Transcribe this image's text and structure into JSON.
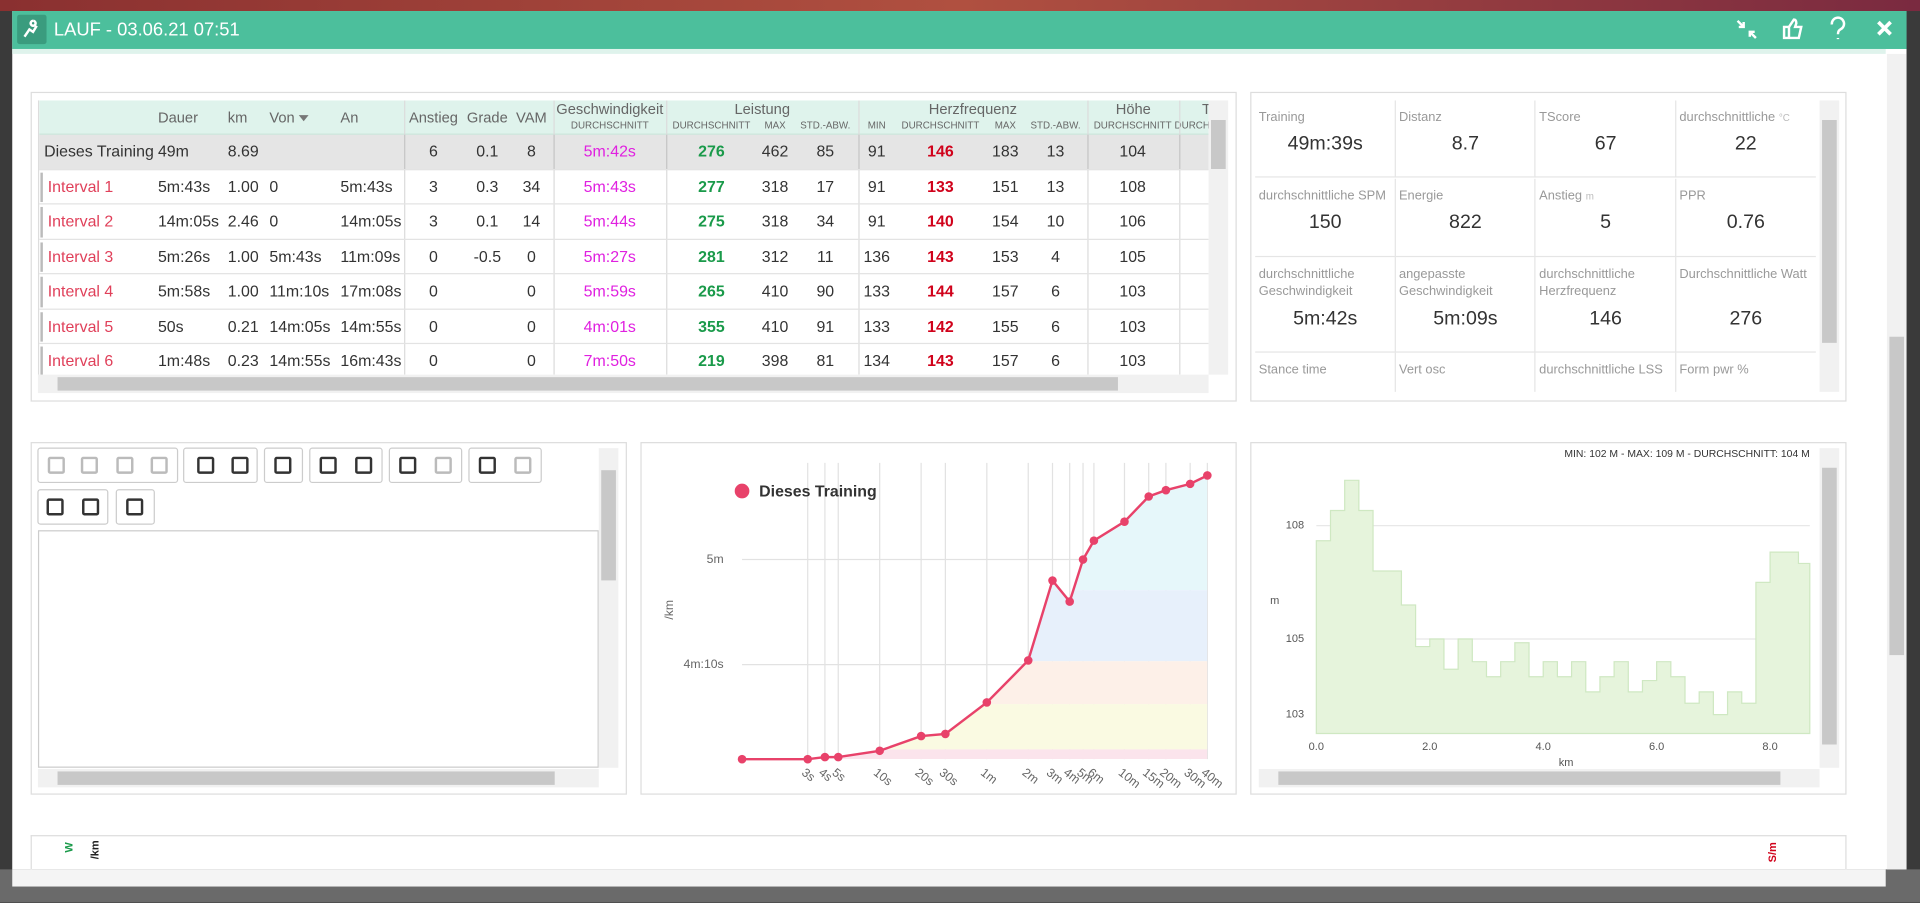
{
  "header": {
    "title": "LAUF - 03.06.21 07:51"
  },
  "table": {
    "columns": [
      "Dauer",
      "km",
      "Von",
      "An",
      "Anstieg",
      "Grade",
      "VAM"
    ],
    "groups": [
      {
        "label": "Geschwindigkeit",
        "sub": [
          "DURCHSCHNITT"
        ]
      },
      {
        "label": "Leistung",
        "sub": [
          "DURCHSCHNITT",
          "MAX",
          "STD.-ABW."
        ]
      },
      {
        "label": "Herzfrequenz",
        "sub": [
          "MIN",
          "DURCHSCHNITT",
          "MAX",
          "STD.-ABW."
        ]
      },
      {
        "label": "Höhe",
        "sub": [
          "DURCHSCHNITT"
        ]
      },
      {
        "label": "Temperatur",
        "sub": [
          "DURCHSCHNITT"
        ]
      }
    ],
    "rows": [
      [
        "Dieses Training",
        "49m",
        "8.69",
        null,
        null,
        "6",
        "0.1",
        "8",
        "5m:42s",
        "276",
        "462",
        "85",
        "91",
        "146",
        "183",
        "13",
        "104"
      ],
      [
        "Interval 1",
        "5m:43s",
        "1.00",
        "0",
        "5m:43s",
        "3",
        "0.3",
        "34",
        "5m:43s",
        "277",
        "318",
        "17",
        "91",
        "133",
        "151",
        "13",
        "108"
      ],
      [
        "Interval 2",
        "14m:05s",
        "2.46",
        "0",
        "14m:05s",
        "3",
        "0.1",
        "14",
        "5m:44s",
        "275",
        "318",
        "34",
        "91",
        "140",
        "154",
        "10",
        "106"
      ],
      [
        "Interval 3",
        "5m:26s",
        "1.00",
        "5m:43s",
        "11m:09s",
        "0",
        "-0.5",
        "0",
        "5m:27s",
        "281",
        "312",
        "11",
        "136",
        "143",
        "153",
        "4",
        "105"
      ],
      [
        "Interval 4",
        "5m:58s",
        "1.00",
        "11m:10s",
        "17m:08s",
        "0",
        null,
        "0",
        "5m:59s",
        "265",
        "410",
        "90",
        "133",
        "144",
        "157",
        "6",
        "103"
      ],
      [
        "Interval 5",
        "50s",
        "0.21",
        "14m:05s",
        "14m:55s",
        "0",
        null,
        "0",
        "4m:01s",
        "355",
        "410",
        "91",
        "133",
        "142",
        "155",
        "6",
        "103"
      ],
      [
        "Interval 6",
        "1m:48s",
        "0.23",
        "14m:55s",
        "16m:43s",
        "0",
        null,
        "0",
        "7m:50s",
        "219",
        "398",
        "81",
        "134",
        "143",
        "157",
        "6",
        "103"
      ]
    ]
  },
  "stats": [
    {
      "label": "Training",
      "value": "49m:39s"
    },
    {
      "label": "Distanz",
      "value": "8.7"
    },
    {
      "label": "TScore",
      "value": "67"
    },
    {
      "label": "durchschnittliche",
      "unit": "°C",
      "value": "22"
    },
    {
      "label": "durchschnittliche SPM",
      "value": "150"
    },
    {
      "label": "Energie",
      "value": "822"
    },
    {
      "label": "Anstieg",
      "unit": "m",
      "value": "5"
    },
    {
      "label": "PPR",
      "value": "0.76"
    },
    {
      "label": "durchschnittliche Geschwindigkeit",
      "value": "5m:42s"
    },
    {
      "label": "angepasste Geschwindigkeit",
      "value": "5m:09s"
    },
    {
      "label": "durchschnittliche Herzfrequenz",
      "value": "146"
    },
    {
      "label": "Durchschnittliche Watt",
      "value": "276"
    },
    {
      "label": "Stance time"
    },
    {
      "label": "Vert osc"
    },
    {
      "label": "durchschnittliche LSS"
    },
    {
      "label": "Form pwr %"
    }
  ],
  "chart_data": [
    {
      "type": "line",
      "y_label": "/km",
      "log_x": true,
      "grid": true,
      "x": [
        1,
        3,
        4,
        5,
        10,
        20,
        30,
        60,
        120,
        180,
        240,
        300,
        360,
        600,
        900,
        1200,
        1800,
        2400
      ],
      "series": [
        {
          "name": "Dieses Training",
          "color": "#e8426a",
          "values": [
            205,
            205,
            206,
            206,
            209,
            216,
            217,
            232,
            252,
            290,
            280,
            300,
            309,
            318,
            330,
            333,
            336,
            340
          ]
        }
      ],
      "xlim": [
        1,
        2400
      ],
      "xticks": [
        {
          "value": 3,
          "label": "3s"
        },
        {
          "value": 4,
          "label": "4s"
        },
        {
          "value": 5,
          "label": "5s"
        },
        {
          "value": 10,
          "label": "10s"
        },
        {
          "value": 20,
          "label": "20s"
        },
        {
          "value": 30,
          "label": "30s"
        },
        {
          "value": 60,
          "label": "1m"
        },
        {
          "value": 120,
          "label": "2m"
        },
        {
          "value": 180,
          "label": "3m"
        },
        {
          "value": 240,
          "label": "4m"
        },
        {
          "value": 300,
          "label": "5m"
        },
        {
          "value": 360,
          "label": "6m"
        },
        {
          "value": 600,
          "label": "10m"
        },
        {
          "value": 900,
          "label": "15m"
        },
        {
          "value": 1200,
          "label": "20m"
        },
        {
          "value": 1800,
          "label": "30m"
        },
        {
          "value": 2400,
          "label": "40m"
        }
      ],
      "ylim": [
        205,
        346
      ],
      "yticks": [
        {
          "value": 250,
          "label": "4m:10s"
        },
        {
          "value": 300,
          "label": "5m"
        }
      ]
    },
    {
      "type": "area",
      "subtitle": "MIN: 102 M - MAX: 109 M - DURCHSCHNITT: 104 M",
      "x_label": "km",
      "y_label": "m",
      "color": "#e6f4dc",
      "grid": true,
      "x": [
        0,
        0.25,
        0.5,
        0.75,
        1,
        1.25,
        1.5,
        1.75,
        2,
        2.25,
        2.5,
        2.75,
        3,
        3.25,
        3.5,
        3.75,
        4,
        4.25,
        4.5,
        4.75,
        5,
        5.25,
        5.5,
        5.75,
        6,
        6.25,
        6.5,
        6.75,
        7,
        7.25,
        7.5,
        7.75,
        8,
        8.25,
        8.5
      ],
      "values": [
        107.6,
        108.4,
        109.2,
        108.4,
        106.8,
        106.8,
        105.9,
        104.8,
        105,
        104.2,
        105,
        104.4,
        104,
        104.4,
        104.9,
        104,
        104.4,
        104,
        104.4,
        103.6,
        104,
        104.4,
        103.6,
        103.9,
        104.4,
        104,
        103.3,
        103.6,
        103,
        103.6,
        103.3,
        106.5,
        107.3,
        107.3,
        107
      ],
      "xlim": [
        0,
        8.7
      ],
      "xticks": [
        {
          "value": 0,
          "label": "0.0"
        },
        {
          "value": 2,
          "label": "2.0"
        },
        {
          "value": 4,
          "label": "4.0"
        },
        {
          "value": 6,
          "label": "6.0"
        },
        {
          "value": 8,
          "label": "8.0"
        }
      ],
      "ylim": [
        102.5,
        109.5
      ],
      "yticks": [
        103,
        105,
        108
      ]
    }
  ],
  "bottom_panel": {
    "left_axis": "W",
    "pace_axis": "/km",
    "right_axis": "S/m"
  }
}
